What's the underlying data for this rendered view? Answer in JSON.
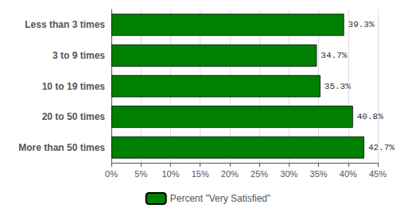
{
  "chart_data": {
    "type": "bar",
    "orientation": "horizontal",
    "categories": [
      "Less than 3 times",
      "3 to 9 times",
      "10 to 19 times",
      "20 to 50 times",
      "More than 50 times"
    ],
    "series": [
      {
        "name": "Percent \"Very Satisfied\"",
        "color": "#008000",
        "values": [
          39.3,
          34.7,
          35.3,
          40.8,
          42.7
        ],
        "value_labels": [
          "39.3%",
          "34.7%",
          "35.3%",
          "40.8%",
          "42.7%"
        ]
      }
    ],
    "xlim": [
      0,
      45
    ],
    "xticks": [
      {
        "value": 0,
        "label": "0%"
      },
      {
        "value": 5,
        "label": "5%"
      },
      {
        "value": 10,
        "label": "10%"
      },
      {
        "value": 15,
        "label": "15%"
      },
      {
        "value": 20,
        "label": "20%"
      },
      {
        "value": 25,
        "label": "25%"
      },
      {
        "value": 30,
        "label": "30%"
      },
      {
        "value": 35,
        "label": "35%"
      },
      {
        "value": 40,
        "label": "40%"
      },
      {
        "value": 45,
        "label": "45%"
      }
    ],
    "grid": true,
    "legend": "bottom",
    "data_labels": true
  }
}
